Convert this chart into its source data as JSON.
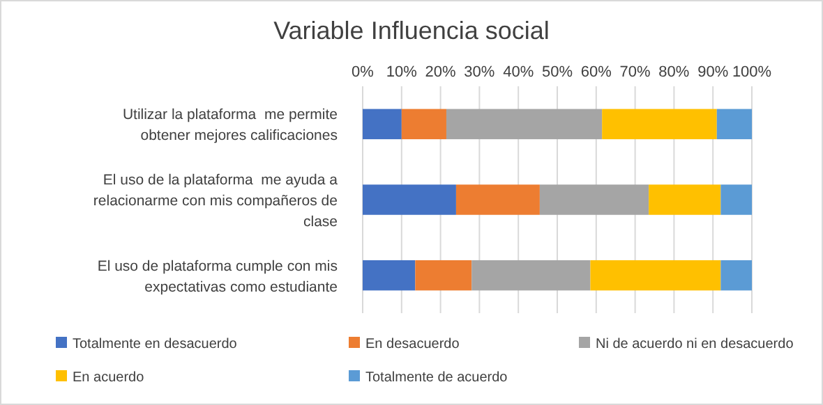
{
  "chart_data": {
    "type": "bar",
    "title": "Variable Influencia social",
    "orientation": "horizontal",
    "stacked": true,
    "categories": [
      "Utilizar la plataforma  me permite obtener mejores calificaciones",
      "El uso de la plataforma  me ayuda a relacionarme con mis compañeros de clase",
      "El uso de plataforma cumple con mis expectativas como estudiante"
    ],
    "series": [
      {
        "name": "Totalmente en desacuerdo",
        "color": "#4472c4",
        "values": [
          10,
          24,
          13.5
        ]
      },
      {
        "name": "En desacuerdo",
        "color": "#ed7d31",
        "values": [
          11.5,
          21.5,
          14.5
        ]
      },
      {
        "name": "Ni de acuerdo ni en desacuerdo",
        "color": "#a5a5a5",
        "values": [
          40,
          28,
          30.5
        ]
      },
      {
        "name": "En acuerdo",
        "color": "#ffc000",
        "values": [
          29.5,
          18.5,
          33.5
        ]
      },
      {
        "name": "Totalmente de acuerdo",
        "color": "#5b9bd5",
        "values": [
          9,
          8,
          8
        ]
      }
    ],
    "xlim": [
      0,
      100
    ],
    "xticks": [
      {
        "value": 0,
        "label": "0%"
      },
      {
        "value": 10,
        "label": "10%"
      },
      {
        "value": 20,
        "label": "20%"
      },
      {
        "value": 30,
        "label": "30%"
      },
      {
        "value": 40,
        "label": "40%"
      },
      {
        "value": 50,
        "label": "50%"
      },
      {
        "value": 60,
        "label": "60%"
      },
      {
        "value": 70,
        "label": "70%"
      },
      {
        "value": 80,
        "label": "80%"
      },
      {
        "value": 90,
        "label": "90%"
      },
      {
        "value": 100,
        "label": "100%"
      }
    ],
    "grid": "x",
    "legend": "bottom"
  }
}
